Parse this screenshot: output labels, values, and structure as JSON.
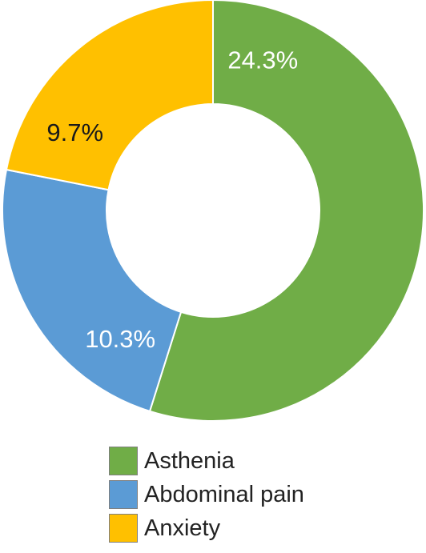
{
  "chart_data": {
    "type": "pie",
    "variant": "donut",
    "slices": [
      {
        "label": "Asthenia",
        "value": 24.3,
        "display": "24.3%",
        "color": "#70ad47",
        "label_color": "#ffffff"
      },
      {
        "label": "Abdominal pain",
        "value": 10.3,
        "display": "10.3%",
        "color": "#5b9bd5",
        "label_color": "#ffffff"
      },
      {
        "label": "Anxiety",
        "value": 9.7,
        "display": "9.7%",
        "color": "#ffc000",
        "label_color": "#1a1a1a"
      }
    ],
    "legend_position": "bottom",
    "start_direction": "top, clockwise"
  }
}
